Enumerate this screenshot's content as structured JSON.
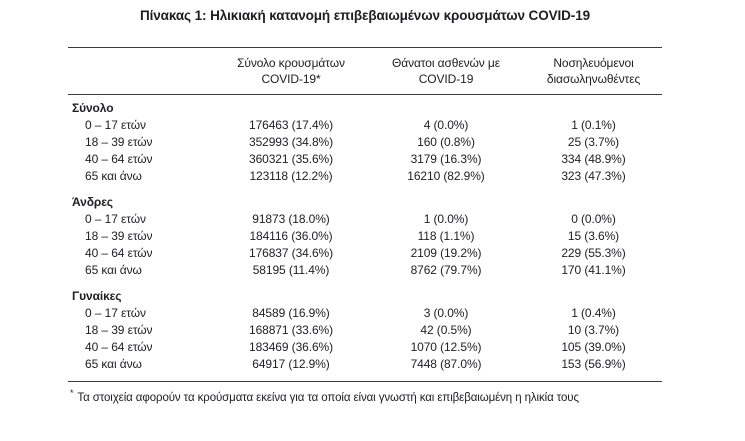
{
  "page": {
    "title": "Πίνακας 1: Ηλικιακή κατανομή επιβεβαιωμένων κρουσμάτων COVID-19"
  },
  "table": {
    "headers": [
      {
        "line1": "Σύνολο κρουσμάτων",
        "line2": "COVID-19*"
      },
      {
        "line1": "Θάνατοι ασθενών με",
        "line2": "COVID-19"
      },
      {
        "line1": "Νοσηλευόμενοι",
        "line2": "διασωληνωθέντες"
      }
    ],
    "sections": [
      {
        "label": "Σύνολο",
        "rows": [
          [
            "0 – 17 ετών",
            "176463 (17.4%)",
            "4 (0.0%)",
            "1 (0.1%)"
          ],
          [
            "18 – 39 ετών",
            "352993 (34.8%)",
            "160 (0.8%)",
            "25 (3.7%)"
          ],
          [
            "40 – 64 ετών",
            "360321 (35.6%)",
            "3179 (16.3%)",
            "334 (48.9%)"
          ],
          [
            "65 και άνω",
            "123118 (12.2%)",
            "16210 (82.9%)",
            "323 (47.3%)"
          ]
        ]
      },
      {
        "label": "Άνδρες",
        "rows": [
          [
            "0 – 17 ετών",
            "91873 (18.0%)",
            "1 (0.0%)",
            "0 (0.0%)"
          ],
          [
            "18 – 39 ετών",
            "184116 (36.0%)",
            "118 (1.1%)",
            "15 (3.6%)"
          ],
          [
            "40 – 64 ετών",
            "176837 (34.6%)",
            "2109 (19.2%)",
            "229 (55.3%)"
          ],
          [
            "65 και άνω",
            "58195 (11.4%)",
            "8762 (79.7%)",
            "170 (41.1%)"
          ]
        ]
      },
      {
        "label": "Γυναίκες",
        "rows": [
          [
            "0 – 17 ετών",
            "84589 (16.9%)",
            "3 (0.0%)",
            "1 (0.4%)"
          ],
          [
            "18 – 39 ετών",
            "168871 (33.6%)",
            "42 (0.5%)",
            "10 (3.7%)"
          ],
          [
            "40 – 64 ετών",
            "183469 (36.6%)",
            "1070 (12.5%)",
            "105 (39.0%)"
          ],
          [
            "65 και άνω",
            "64917 (12.9%)",
            "7448 (87.0%)",
            "153 (56.9%)"
          ]
        ]
      }
    ]
  },
  "footnote": {
    "marker": "*",
    "text": "Τα στοιχεία αφορούν τα κρούσματα εκείνα για τα οποία είναι γνωστή και επιβεβαιωμένη η ηλικία τους"
  }
}
